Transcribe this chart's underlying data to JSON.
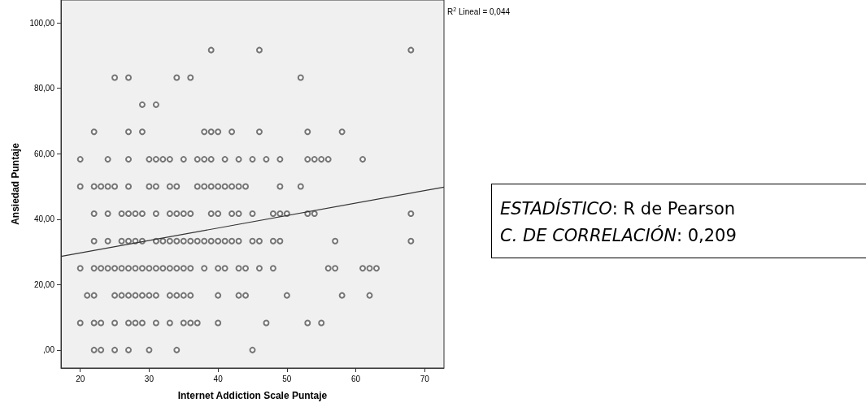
{
  "chart_data": {
    "type": "scatter",
    "xlabel": "Internet Addiction Scale Puntaje",
    "ylabel": "Ansiedad Puntaje",
    "xlim": [
      17.2,
      72.8
    ],
    "xticks": [
      20,
      30,
      40,
      50,
      60,
      70
    ],
    "ylim": [
      -5.5,
      107
    ],
    "yticks": [
      {
        "value": 0,
        "label": ",00"
      },
      {
        "value": 20,
        "label": "20,00"
      },
      {
        "value": 40,
        "label": "40,00"
      },
      {
        "value": 60,
        "label": "60,00"
      },
      {
        "value": 80,
        "label": "80,00"
      },
      {
        "value": 100,
        "label": "100,00"
      }
    ],
    "marker": "circle",
    "series": [
      {
        "color": "#555555",
        "x": [
          22,
          23,
          25,
          27,
          30,
          34,
          45,
          20,
          22,
          23,
          25,
          27,
          28,
          29,
          31,
          33,
          35,
          36,
          37,
          40,
          47,
          53,
          55,
          21,
          22,
          25,
          26,
          27,
          28,
          29,
          30,
          31,
          33,
          34,
          35,
          36,
          40,
          43,
          44,
          50,
          58,
          62,
          20,
          22,
          23,
          24,
          25,
          26,
          27,
          28,
          29,
          30,
          31,
          32,
          33,
          34,
          35,
          36,
          38,
          40,
          41,
          43,
          44,
          46,
          48,
          56,
          57,
          61,
          62,
          63,
          22,
          24,
          26,
          27,
          28,
          29,
          31,
          32,
          33,
          34,
          35,
          36,
          37,
          38,
          39,
          40,
          41,
          42,
          43,
          45,
          46,
          48,
          49,
          57,
          68,
          22,
          24,
          26,
          27,
          28,
          29,
          31,
          33,
          34,
          35,
          36,
          39,
          40,
          42,
          43,
          45,
          48,
          49,
          50,
          53,
          54,
          68,
          20,
          22,
          23,
          24,
          25,
          27,
          30,
          31,
          33,
          34,
          37,
          38,
          39,
          40,
          41,
          42,
          43,
          44,
          49,
          52,
          20,
          24,
          27,
          30,
          31,
          32,
          33,
          35,
          37,
          38,
          39,
          41,
          43,
          45,
          47,
          49,
          53,
          54,
          55,
          56,
          61,
          22,
          27,
          29,
          38,
          39,
          40,
          42,
          46,
          53,
          58,
          29,
          31,
          25,
          27,
          34,
          36,
          52,
          39,
          46,
          68
        ],
        "values": [
          0,
          0,
          0,
          0,
          0,
          0,
          0,
          8.3,
          8.3,
          8.3,
          8.3,
          8.3,
          8.3,
          8.3,
          8.3,
          8.3,
          8.3,
          8.3,
          8.3,
          8.3,
          8.3,
          8.3,
          8.3,
          16.7,
          16.7,
          16.7,
          16.7,
          16.7,
          16.7,
          16.7,
          16.7,
          16.7,
          16.7,
          16.7,
          16.7,
          16.7,
          16.7,
          16.7,
          16.7,
          16.7,
          16.7,
          16.7,
          25,
          25,
          25,
          25,
          25,
          25,
          25,
          25,
          25,
          25,
          25,
          25,
          25,
          25,
          25,
          25,
          25,
          25,
          25,
          25,
          25,
          25,
          25,
          25,
          25,
          25,
          25,
          25,
          33.3,
          33.3,
          33.3,
          33.3,
          33.3,
          33.3,
          33.3,
          33.3,
          33.3,
          33.3,
          33.3,
          33.3,
          33.3,
          33.3,
          33.3,
          33.3,
          33.3,
          33.3,
          33.3,
          33.3,
          33.3,
          33.3,
          33.3,
          33.3,
          33.3,
          41.7,
          41.7,
          41.7,
          41.7,
          41.7,
          41.7,
          41.7,
          41.7,
          41.7,
          41.7,
          41.7,
          41.7,
          41.7,
          41.7,
          41.7,
          41.7,
          41.7,
          41.7,
          41.7,
          41.7,
          41.7,
          41.7,
          50,
          50,
          50,
          50,
          50,
          50,
          50,
          50,
          50,
          50,
          50,
          50,
          50,
          50,
          50,
          50,
          50,
          50,
          50,
          50,
          58.3,
          58.3,
          58.3,
          58.3,
          58.3,
          58.3,
          58.3,
          58.3,
          58.3,
          58.3,
          58.3,
          58.3,
          58.3,
          58.3,
          58.3,
          58.3,
          58.3,
          58.3,
          58.3,
          58.3,
          58.3,
          66.7,
          66.7,
          66.7,
          66.7,
          66.7,
          66.7,
          66.7,
          66.7,
          66.7,
          66.7,
          75,
          75,
          83.3,
          83.3,
          83.3,
          83.3,
          83.3,
          91.7,
          91.7,
          91.7
        ]
      },
      {
        "type": "line",
        "color": "#333333",
        "marker": "none",
        "x": [
          17.2,
          72.8
        ],
        "values": [
          28.6,
          49.8
        ]
      }
    ],
    "annotations": [
      "R$^{2}$ Lineal = 0,044",
      "ESTADÍSTICO: R de Pearson",
      "C. DE CORRELACIÓN: 0,209"
    ]
  }
}
